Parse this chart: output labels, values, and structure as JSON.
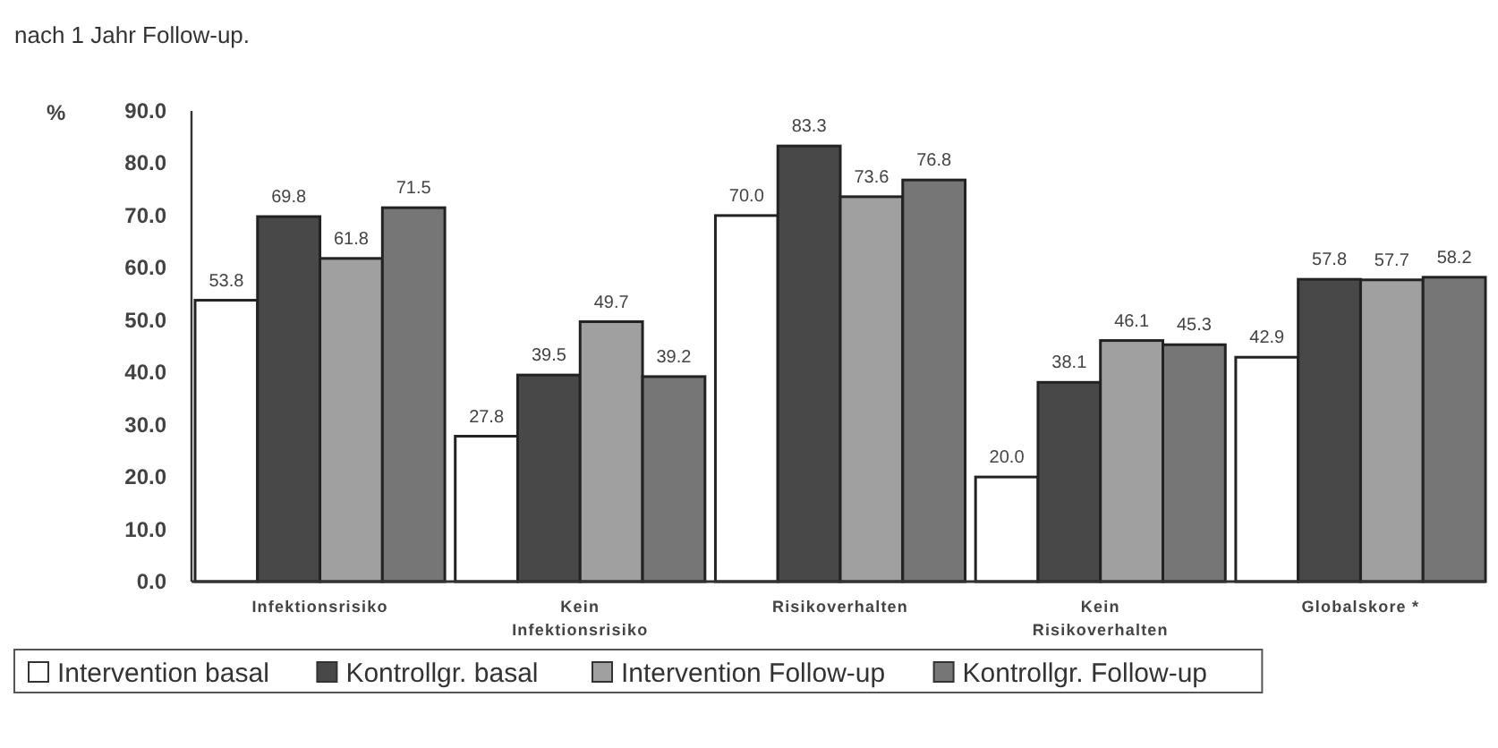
{
  "chart_data": {
    "type": "bar",
    "title": "nach 1 Jahr Follow-up.",
    "ylabel": "%",
    "categories": [
      "Infektionsrisiko",
      "Kein\nInfektionsrisiko",
      "Risikoverhalten",
      "Kein\nRisikoverhalten",
      "Globalskore *"
    ],
    "series": [
      {
        "name": "Intervention basal",
        "color": "#ffffff",
        "values": [
          53.8,
          27.8,
          70.0,
          20.0,
          42.9
        ],
        "value_labels": [
          "53.8",
          "27.8",
          "70.0",
          "20.0",
          "42.9"
        ]
      },
      {
        "name": "Kontrollgr. basal",
        "color": "#484848",
        "values": [
          69.8,
          39.5,
          83.3,
          38.1,
          57.8
        ],
        "value_labels": [
          "69.8",
          "39.5",
          "83.3",
          "38.1",
          "57.8"
        ]
      },
      {
        "name": "Intervention Follow-up",
        "color": "#a0a0a0",
        "values": [
          61.8,
          49.7,
          73.6,
          46.1,
          57.7
        ],
        "value_labels": [
          "61.8",
          "49.7",
          "73.6",
          "46.1",
          "57.7"
        ]
      },
      {
        "name": "Kontrollgr. Follow-up",
        "color": "#767676",
        "values": [
          71.5,
          39.2,
          76.8,
          45.3,
          58.2
        ],
        "value_labels": [
          "71.5",
          "39.2",
          "76.8",
          "45.3",
          "58.2"
        ]
      }
    ],
    "ylim": [
      0,
      90
    ],
    "yticks": [
      {
        "value": 0,
        "label": "0.0"
      },
      {
        "value": 10,
        "label": "10.0"
      },
      {
        "value": 20,
        "label": "20.0"
      },
      {
        "value": 30,
        "label": "30.0"
      },
      {
        "value": 40,
        "label": "40.0"
      },
      {
        "value": 50,
        "label": "50.0"
      },
      {
        "value": 60,
        "label": "60.0"
      },
      {
        "value": 70,
        "label": "70.0"
      },
      {
        "value": 80,
        "label": "80.0"
      },
      {
        "value": 90,
        "label": "90.0"
      }
    ],
    "grid": false,
    "legend": "bottom"
  }
}
